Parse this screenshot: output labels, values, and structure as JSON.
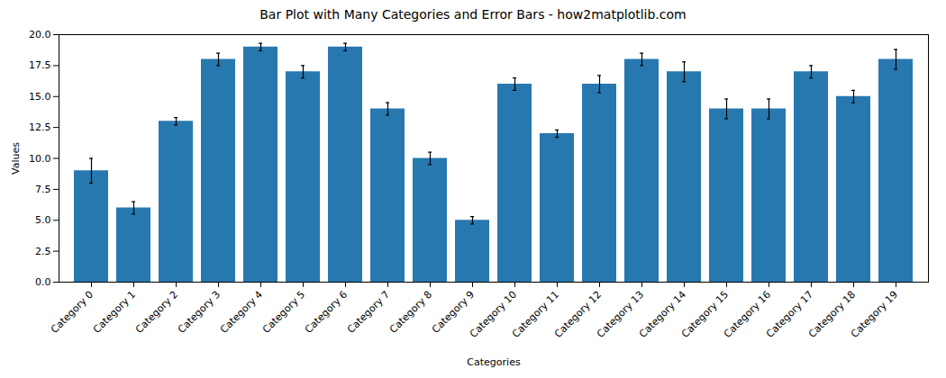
{
  "chart_data": {
    "type": "bar",
    "title": "Bar Plot with Many Categories and Error Bars - how2matplotlib.com",
    "xlabel": "Categories",
    "ylabel": "Values",
    "categories": [
      "Category 0",
      "Category 1",
      "Category 2",
      "Category 3",
      "Category 4",
      "Category 5",
      "Category 6",
      "Category 7",
      "Category 8",
      "Category 9",
      "Category 10",
      "Category 11",
      "Category 12",
      "Category 13",
      "Category 14",
      "Category 15",
      "Category 16",
      "Category 17",
      "Category 18",
      "Category 19"
    ],
    "values": [
      9,
      6,
      13,
      18,
      19,
      17,
      19,
      14,
      10,
      5,
      16,
      12,
      16,
      18,
      17,
      14,
      14,
      17,
      15,
      18
    ],
    "errors": [
      1.0,
      0.5,
      0.3,
      0.5,
      0.3,
      0.5,
      0.3,
      0.5,
      0.5,
      0.3,
      0.5,
      0.3,
      0.7,
      0.5,
      0.8,
      0.8,
      0.8,
      0.5,
      0.5,
      0.8
    ],
    "color": "#2878b0",
    "ylim": [
      0,
      20
    ],
    "yticks": [
      {
        "value": 0,
        "label": "0.0"
      },
      2.5,
      {
        "value": 5,
        "label": "5.0"
      },
      7.5,
      {
        "value": 10,
        "label": "10.0"
      },
      12.5,
      {
        "value": 15,
        "label": "15.0"
      },
      17.5,
      {
        "value": 20,
        "label": "20.0"
      }
    ],
    "grid": false
  }
}
